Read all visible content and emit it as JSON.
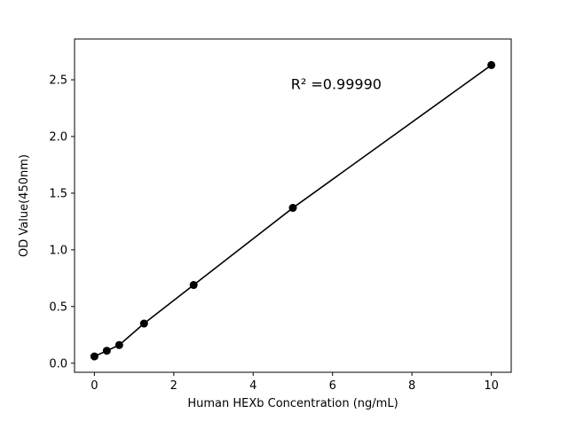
{
  "chart_data": {
    "type": "scatter",
    "x": [
      0,
      0.3125,
      0.625,
      1.25,
      2.5,
      5,
      10
    ],
    "y": [
      0.06,
      0.11,
      0.16,
      0.35,
      0.69,
      1.37,
      2.63
    ],
    "title": "",
    "xlabel": "Human HEXb Concentration (ng/mL)",
    "ylabel": "OD Value(450nm)",
    "xlim": [
      -0.5,
      10.5
    ],
    "ylim": [
      -0.08,
      2.86
    ],
    "x_ticks": [
      0,
      2,
      4,
      6,
      8,
      10
    ],
    "x_tick_labels": [
      "0",
      "2",
      "4",
      "6",
      "8",
      "10"
    ],
    "y_ticks": [
      0.0,
      0.5,
      1.0,
      1.5,
      2.0,
      2.5
    ],
    "y_tick_labels": [
      "0.0",
      "0.5",
      "1.0",
      "1.5",
      "2.0",
      "2.5"
    ],
    "annotation": "R² =0.99990",
    "annotation_x": 4.95,
    "annotation_y": 2.42,
    "line": true,
    "grid": false,
    "legend": "none",
    "marker_color": "#000000",
    "line_color": "#000000",
    "marker_radius": 4.5
  }
}
